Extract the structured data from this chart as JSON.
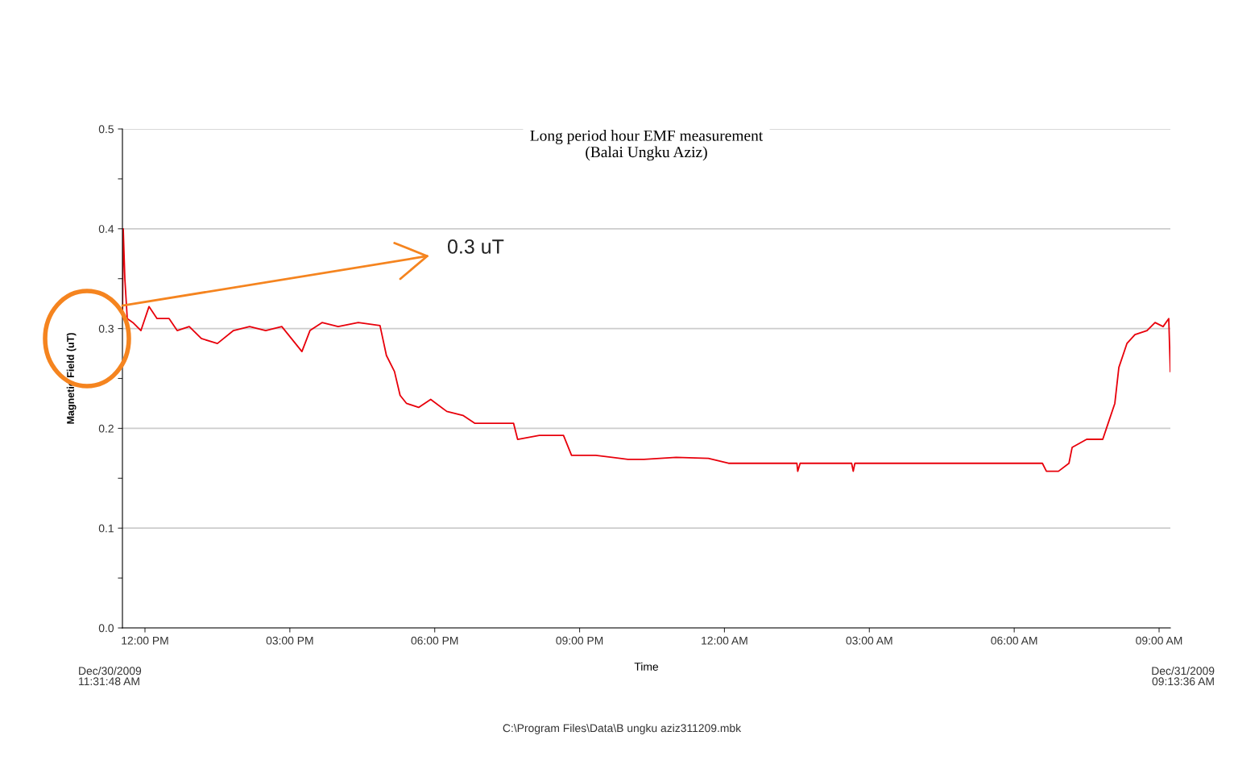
{
  "chart_data": {
    "type": "line",
    "title": "Long period hour EMF measurement\n(Balai Ungku Aziz)",
    "xlabel": "Time",
    "ylabel": "Magnetic Field (uT)",
    "x": [
      "2009-12-30T11:32",
      "2009-12-30T11:33",
      "2009-12-30T11:35",
      "2009-12-30T11:38",
      "2009-12-30T11:45",
      "2009-12-30T11:55",
      "2009-12-30T12:05",
      "2009-12-30T12:15",
      "2009-12-30T12:30",
      "2009-12-30T12:40",
      "2009-12-30T12:55",
      "2009-12-30T13:10",
      "2009-12-30T13:30",
      "2009-12-30T13:50",
      "2009-12-30T14:10",
      "2009-12-30T14:30",
      "2009-12-30T14:50",
      "2009-12-30T15:15",
      "2009-12-30T15:25",
      "2009-12-30T15:40",
      "2009-12-30T16:00",
      "2009-12-30T16:25",
      "2009-12-30T16:52",
      "2009-12-30T17:00",
      "2009-12-30T17:10",
      "2009-12-30T17:17",
      "2009-12-30T17:25",
      "2009-12-30T17:40",
      "2009-12-30T17:55",
      "2009-12-30T18:15",
      "2009-12-30T18:35",
      "2009-12-30T18:50",
      "2009-12-30T19:10",
      "2009-12-30T19:38",
      "2009-12-30T19:43",
      "2009-12-30T20:10",
      "2009-12-30T20:40",
      "2009-12-30T20:50",
      "2009-12-30T21:20",
      "2009-12-30T22:00",
      "2009-12-30T22:20",
      "2009-12-30T23:00",
      "2009-12-30T23:40",
      "2009-12-31T00:05",
      "2009-12-31T01:30",
      "2009-12-31T01:31",
      "2009-12-31T01:34",
      "2009-12-31T02:38",
      "2009-12-31T02:40",
      "2009-12-31T02:42",
      "2009-12-31T06:35",
      "2009-12-31T06:40",
      "2009-12-31T06:55",
      "2009-12-31T07:08",
      "2009-12-31T07:12",
      "2009-12-31T07:30",
      "2009-12-31T07:50",
      "2009-12-31T07:55",
      "2009-12-31T08:05",
      "2009-12-31T08:10",
      "2009-12-31T08:20",
      "2009-12-31T08:30",
      "2009-12-31T08:45",
      "2009-12-31T08:55",
      "2009-12-31T09:05",
      "2009-12-31T09:12",
      "2009-12-31T09:14"
    ],
    "series": [
      {
        "color": "#e8000b",
        "values": [
          0.31,
          0.4,
          0.35,
          0.31,
          0.306,
          0.298,
          0.322,
          0.31,
          0.31,
          0.298,
          0.302,
          0.29,
          0.285,
          0.298,
          0.302,
          0.298,
          0.302,
          0.277,
          0.298,
          0.306,
          0.302,
          0.306,
          0.303,
          0.273,
          0.257,
          0.233,
          0.225,
          0.221,
          0.229,
          0.217,
          0.213,
          0.205,
          0.205,
          0.205,
          0.189,
          0.193,
          0.193,
          0.173,
          0.173,
          0.169,
          0.169,
          0.171,
          0.17,
          0.165,
          0.165,
          0.157,
          0.165,
          0.165,
          0.157,
          0.165,
          0.165,
          0.157,
          0.157,
          0.165,
          0.181,
          0.189,
          0.189,
          0.201,
          0.225,
          0.261,
          0.285,
          0.294,
          0.298,
          0.306,
          0.302,
          0.31,
          0.257
        ]
      }
    ],
    "xlim": [
      "2009-12-30T11:32",
      "2009-12-31T09:14"
    ],
    "xticks": [
      {
        "value": "2009-12-30T12:00",
        "label": "12:00 PM"
      },
      {
        "value": "2009-12-30T15:00",
        "label": "03:00 PM"
      },
      {
        "value": "2009-12-30T18:00",
        "label": "06:00 PM"
      },
      {
        "value": "2009-12-30T21:00",
        "label": "09:00 PM"
      },
      {
        "value": "2009-12-31T00:00",
        "label": "12:00 AM"
      },
      {
        "value": "2009-12-31T03:00",
        "label": "03:00 AM"
      },
      {
        "value": "2009-12-31T06:00",
        "label": "06:00 AM"
      },
      {
        "value": "2009-12-31T09:00",
        "label": "09:00 AM"
      }
    ],
    "ylim": [
      0,
      0.5
    ],
    "yticks": [
      {
        "value": 0,
        "label": "0.0"
      },
      {
        "value": 0.05,
        "label": null
      },
      0.1,
      {
        "value": 0.15,
        "label": null
      },
      0.2,
      {
        "value": 0.25,
        "label": null
      },
      0.3,
      {
        "value": 0.35,
        "label": null
      },
      0.4,
      {
        "value": 0.45,
        "label": null
      },
      0.5
    ],
    "grid": "y",
    "legend": false,
    "marker": "none",
    "line_style": "solid",
    "annotations": [
      {
        "text": "0.3 uT",
        "x": "2009-12-30T11:32",
        "y": 0.323
      },
      "Dec/30/2009\n11:31:48 AM",
      "Dec/31/2009\n09:13:36 AM",
      "C:\\Program Files\\Data\\B ungku aziz311209.mbk"
    ]
  }
}
